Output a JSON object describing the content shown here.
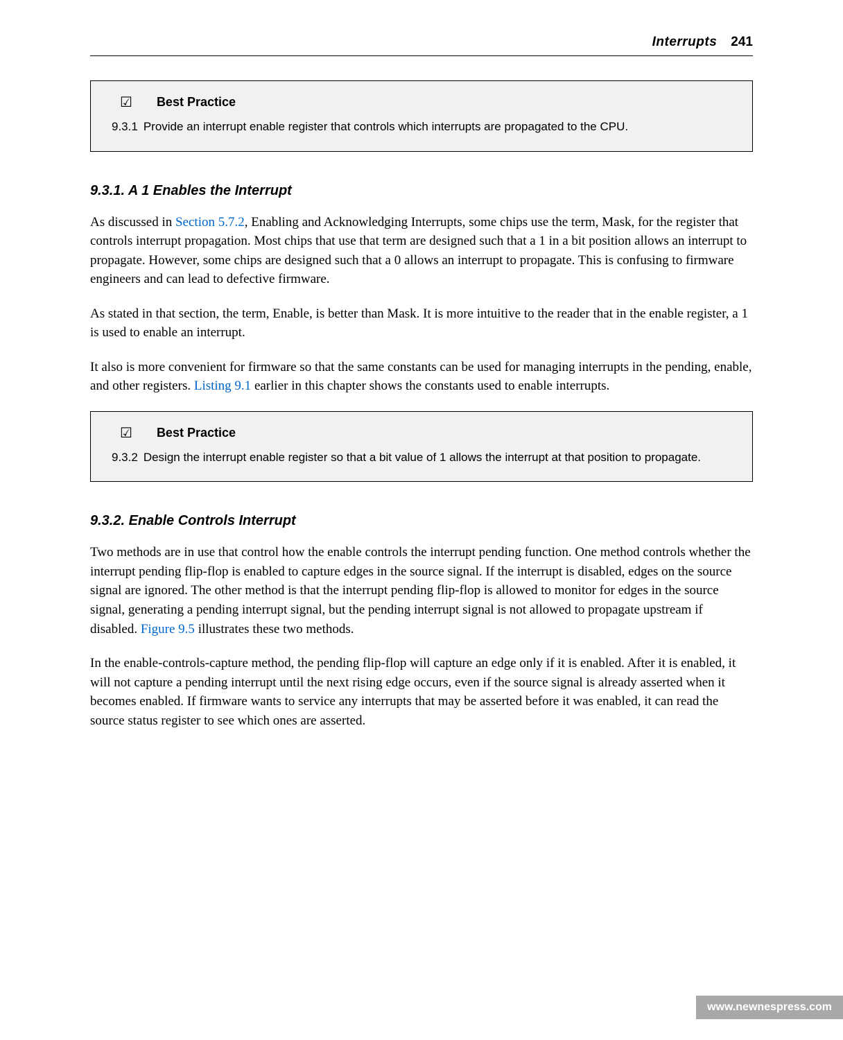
{
  "header": {
    "title": "Interrupts",
    "page_number": "241"
  },
  "best_practice_1": {
    "checkbox": "☑",
    "title": "Best Practice",
    "number": "9.3.1",
    "text": "Provide an interrupt enable register that controls which interrupts are propagated to the CPU."
  },
  "section_1": {
    "heading": "9.3.1. A 1 Enables the Interrupt",
    "para1_pre": "As discussed in ",
    "para1_link": "Section 5.7.2",
    "para1_post": ", Enabling and Acknowledging Interrupts, some chips use the term, Mask, for the register that controls interrupt propagation. Most chips that use that term are designed such that a 1 in a bit position allows an interrupt to propagate. However, some chips are designed such that a 0 allows an interrupt to propagate. This is confusing to firmware engineers and can lead to defective firmware.",
    "para2": "As stated in that section, the term, Enable, is better than Mask. It is more intuitive to the reader that in the enable register, a 1 is used to enable an interrupt.",
    "para3_pre": "It also is more convenient for firmware so that the same constants can be used for managing interrupts in the pending, enable, and other registers. ",
    "para3_link": "Listing 9.1",
    "para3_post": " earlier in this chapter shows the constants used to enable interrupts."
  },
  "best_practice_2": {
    "checkbox": "☑",
    "title": "Best Practice",
    "number": "9.3.2",
    "text": "Design the interrupt enable register so that a bit value of 1 allows the interrupt at that position to propagate."
  },
  "section_2": {
    "heading": "9.3.2. Enable Controls Interrupt",
    "para1_pre": "Two methods are in use that control how the enable controls the interrupt pending function. One method controls whether the interrupt pending flip-flop is enabled to capture edges in the source signal. If the interrupt is disabled, edges on the source signal are ignored. The other method is that the interrupt pending flip-flop is allowed to monitor for edges in the source signal, generating a pending interrupt signal, but the pending interrupt signal is not allowed to propagate upstream if disabled. ",
    "para1_link": "Figure 9.5",
    "para1_post": " illustrates these two methods.",
    "para2": "In the enable-controls-capture method, the pending flip-flop will capture an edge only if it is enabled. After it is enabled, it will not capture a pending interrupt until the next rising edge occurs, even if the source signal is already asserted when it becomes enabled. If firmware wants to service any interrupts that may be asserted before it was enabled, it can read the source status register to see which ones are asserted."
  },
  "footer": {
    "url": "www.newnespress.com"
  }
}
